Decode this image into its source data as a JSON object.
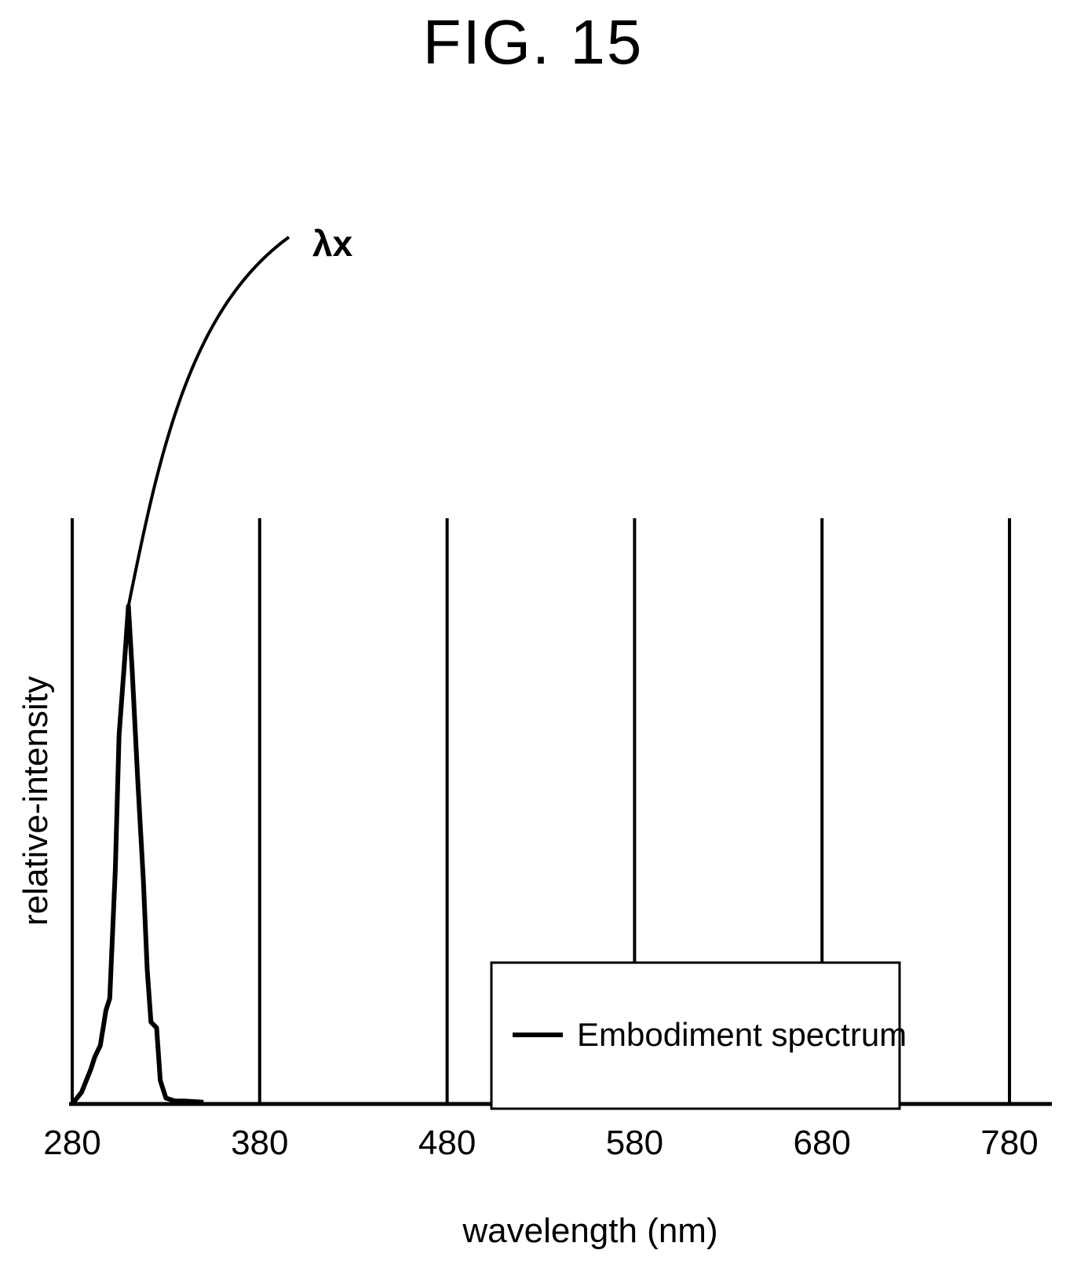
{
  "title": "FIG. 15",
  "chart_data": {
    "type": "line",
    "title": "FIG. 15",
    "xlabel": "wavelength (nm)",
    "ylabel": "relative-intensity",
    "xlim": [
      280,
      780
    ],
    "ylim": [
      0,
      1
    ],
    "xticks": [
      "280",
      "380",
      "480",
      "580",
      "680",
      "780"
    ],
    "grid": "vertical",
    "legend": {
      "position": "bottom-right",
      "entries": [
        "Embodiment spectrum"
      ]
    },
    "annotations": [
      {
        "text": "λx",
        "target": "peak"
      }
    ],
    "series": [
      {
        "name": "Embodiment spectrum",
        "x": [
          280,
          285,
          290,
          292,
          295,
          298,
          300,
          303,
          305,
          308,
          310,
          312,
          315,
          318,
          320,
          322,
          325,
          327,
          330,
          335,
          340,
          350
        ],
        "y": [
          0,
          0.02,
          0.06,
          0.08,
          0.1,
          0.16,
          0.18,
          0.4,
          0.63,
          0.76,
          0.85,
          0.74,
          0.55,
          0.38,
          0.23,
          0.14,
          0.13,
          0.04,
          0.01,
          0.005,
          0.005,
          0.003
        ]
      }
    ]
  }
}
